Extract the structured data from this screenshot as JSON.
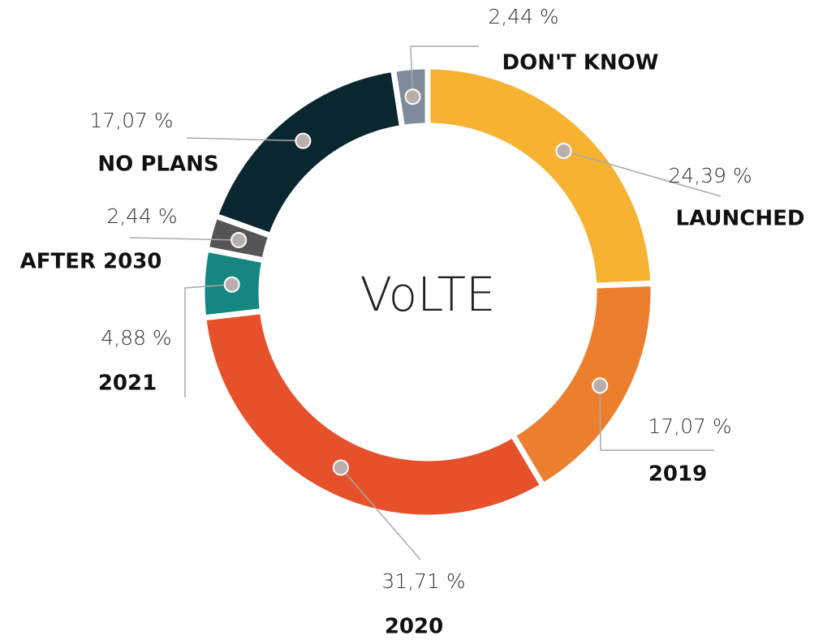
{
  "chart_data": {
    "type": "donut",
    "title": "VoLTE",
    "categories": [
      "LAUNCHED",
      "2019",
      "2020",
      "2021",
      "AFTER 2030",
      "NO PLANS",
      "DON'T KNOW"
    ],
    "values": [
      24.39,
      17.07,
      31.71,
      4.88,
      2.44,
      17.07,
      2.44
    ],
    "value_labels": [
      "24,39 %",
      "17,07 %",
      "31,71 %",
      "4,88 %",
      "2,44 %",
      "17,07 %",
      "2,44 %"
    ],
    "colors": [
      "#f7b231",
      "#ec7f2e",
      "#e6502a",
      "#168680",
      "#555555",
      "#0a2730",
      "#7f8b9a"
    ]
  }
}
